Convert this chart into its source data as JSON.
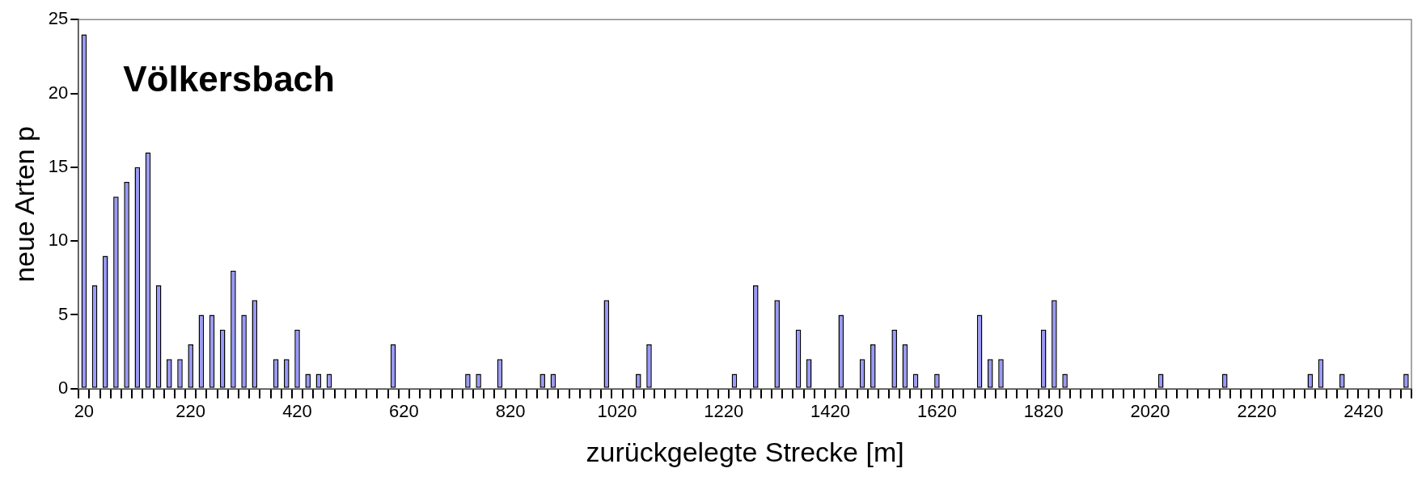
{
  "chart_data": {
    "type": "bar",
    "xlabel": "zurückgelegte Strecke [m]",
    "ylabel": "neue Arten p",
    "annotations": [
      "Völkersbach"
    ],
    "categories": [
      "20",
      null,
      null,
      null,
      null,
      null,
      null,
      null,
      null,
      null,
      "220",
      null,
      null,
      null,
      null,
      null,
      null,
      null,
      null,
      null,
      "420",
      null,
      null,
      null,
      null,
      null,
      null,
      null,
      null,
      null,
      "620",
      null,
      null,
      null,
      null,
      null,
      null,
      null,
      null,
      null,
      "820",
      null,
      null,
      null,
      null,
      null,
      null,
      null,
      null,
      null,
      "1020",
      null,
      null,
      null,
      null,
      null,
      null,
      null,
      null,
      null,
      "1220",
      null,
      null,
      null,
      null,
      null,
      null,
      null,
      null,
      null,
      "1420",
      null,
      null,
      null,
      null,
      null,
      null,
      null,
      null,
      null,
      "1620",
      null,
      null,
      null,
      null,
      null,
      null,
      null,
      null,
      null,
      "1820",
      null,
      null,
      null,
      null,
      null,
      null,
      null,
      null,
      null,
      "2020",
      null,
      null,
      null,
      null,
      null,
      null,
      null,
      null,
      null,
      "2220",
      null,
      null,
      null,
      null,
      null,
      null,
      null,
      null,
      null,
      "2420",
      null,
      null,
      null,
      null
    ],
    "values": [
      24,
      7,
      9,
      13,
      14,
      15,
      16,
      7,
      2,
      2,
      3,
      5,
      5,
      4,
      8,
      5,
      6,
      0,
      2,
      2,
      4,
      1,
      1,
      1,
      0,
      0,
      0,
      0,
      0,
      3,
      0,
      0,
      0,
      0,
      0,
      0,
      1,
      1,
      0,
      2,
      0,
      0,
      0,
      1,
      1,
      0,
      0,
      0,
      0,
      6,
      0,
      0,
      1,
      3,
      0,
      0,
      0,
      0,
      0,
      0,
      0,
      1,
      0,
      7,
      0,
      6,
      0,
      4,
      2,
      0,
      0,
      5,
      0,
      2,
      3,
      0,
      4,
      3,
      1,
      0,
      1,
      0,
      0,
      0,
      5,
      2,
      2,
      0,
      0,
      0,
      4,
      6,
      1,
      0,
      0,
      0,
      0,
      0,
      0,
      0,
      0,
      1,
      0,
      0,
      0,
      0,
      0,
      1,
      0,
      0,
      0,
      0,
      0,
      0,
      0,
      1,
      2,
      0,
      1,
      0,
      0,
      0,
      0,
      0,
      1
    ],
    "color": "#9999ff",
    "ylim": [
      0,
      25
    ],
    "yticks": [
      0,
      5,
      10,
      15,
      20,
      25
    ],
    "grid": false,
    "legend": false
  }
}
